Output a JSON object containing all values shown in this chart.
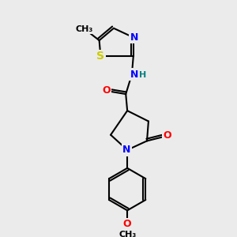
{
  "bg_color": "#ebebeb",
  "atom_colors": {
    "C": "#000000",
    "N": "#0000ff",
    "O": "#ff0000",
    "S": "#cccc00",
    "H": "#008080"
  },
  "font_size": 9,
  "fig_size": [
    3.0,
    3.0
  ],
  "dpi": 100
}
